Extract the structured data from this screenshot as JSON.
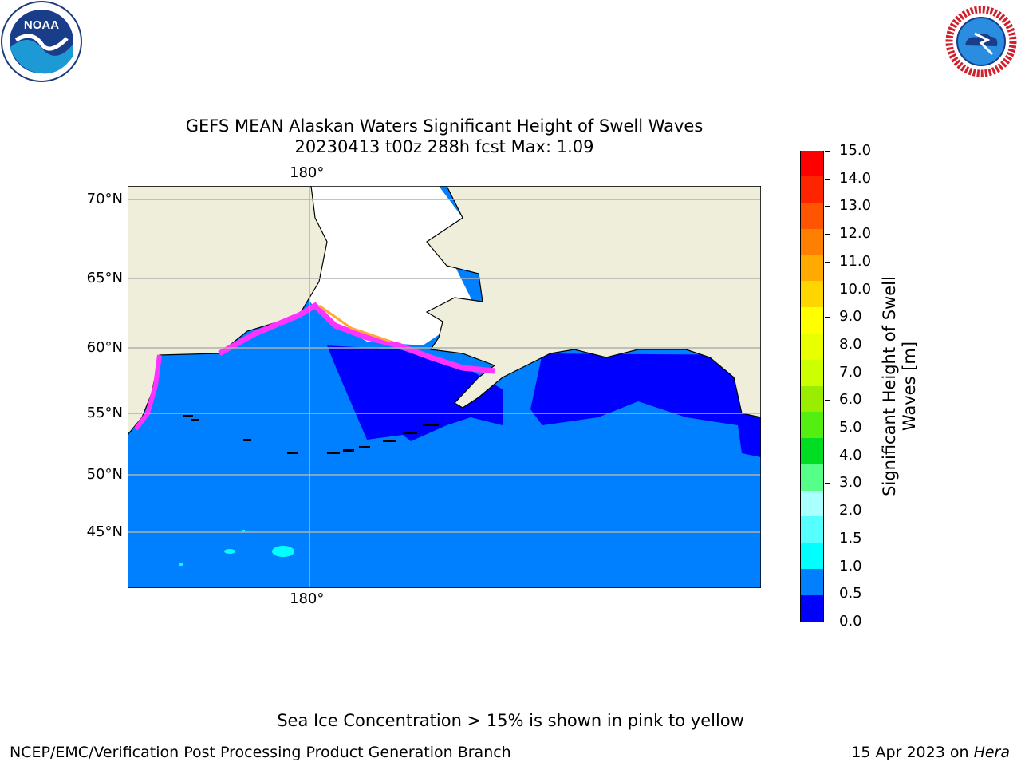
{
  "title_line1": "GEFS MEAN Alaskan Waters Significant Height of Swell Waves",
  "title_line2": "20230413 t00z 288h fcst   Max: 1.09",
  "map": {
    "lon_label": "180°",
    "lat_labels": [
      "70°N",
      "65°N",
      "60°N",
      "55°N",
      "50°N",
      "45°N"
    ]
  },
  "colorbar": {
    "label": "Significant Height of Swell Waves [m]",
    "ticks": [
      "15.0",
      "14.0",
      "13.0",
      "12.0",
      "11.0",
      "10.0",
      "9.0",
      "8.0",
      "7.0",
      "6.0",
      "5.0",
      "4.0",
      "3.0",
      "2.0",
      "1.5",
      "1.0",
      "0.5",
      "0.0"
    ],
    "colors_top_to_bottom": [
      "#ff0000",
      "#ff2400",
      "#ff5500",
      "#ff7f00",
      "#ffaa00",
      "#ffd500",
      "#ffff00",
      "#e8ff00",
      "#ccff00",
      "#99ee00",
      "#55ee11",
      "#00dd22",
      "#55ff88",
      "#aaffff",
      "#55ffff",
      "#00ffff",
      "#0080ff",
      "#0000ff"
    ]
  },
  "colors": {
    "land": "#efeedb",
    "ocean_main": "#0080ff",
    "ocean_low": "#0000ff",
    "ice_edge": "#ff33ff"
  },
  "logos": {
    "noaa_text": "NOAA",
    "nws_text": "NATIONAL WEATHER SERVICE"
  },
  "footer": {
    "note": "Sea Ice Concentration > 15% is shown in pink to yellow",
    "left": "NCEP/EMC/Verification Post Processing Product Generation Branch",
    "date": "15 Apr 2023 on",
    "machine": "Hera"
  }
}
